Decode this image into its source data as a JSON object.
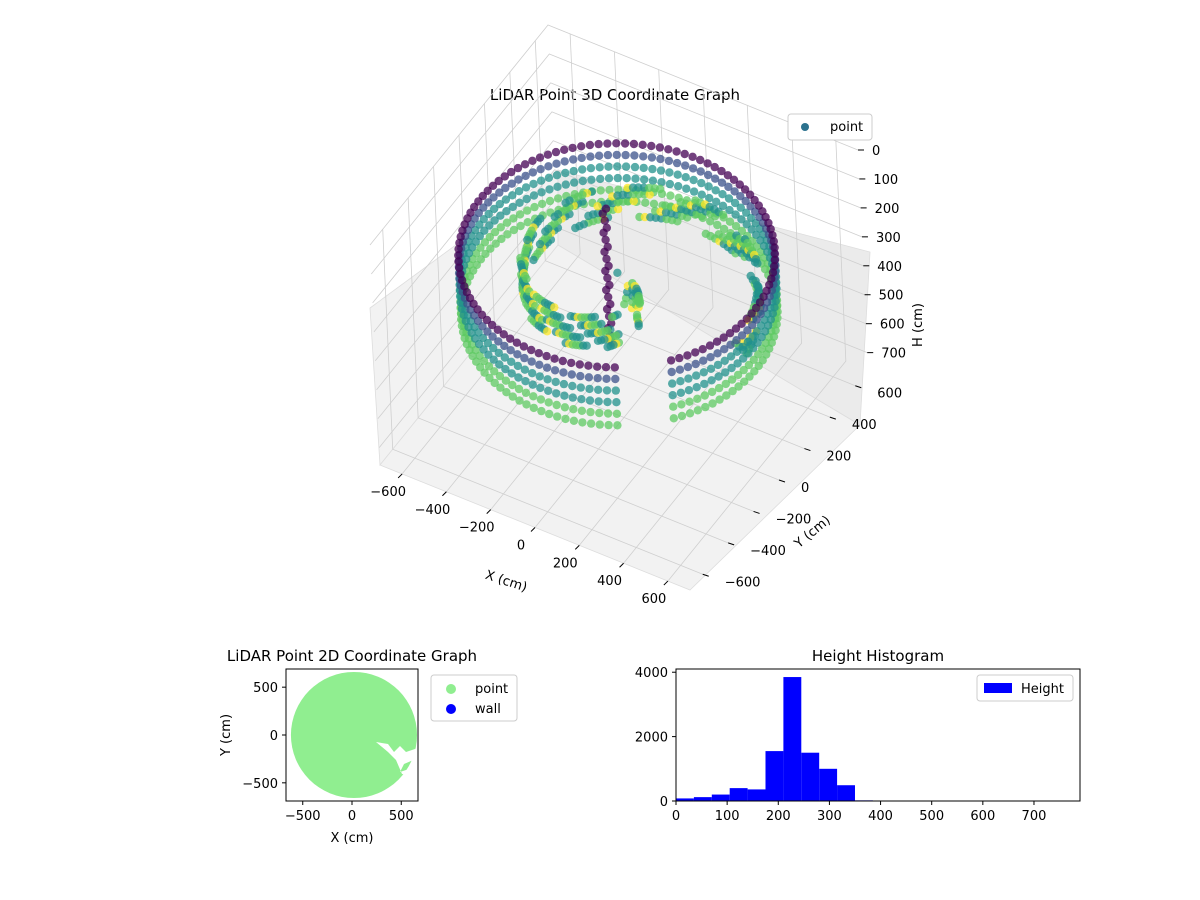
{
  "figure": {
    "chart_data": [
      {
        "type": "scatter3d",
        "title": "LiDAR Point 3D Coordinate Graph",
        "xlabel": "X (cm)",
        "ylabel": "Y (cm)",
        "zlabel": "H (cm)",
        "xlim": [
          -700,
          700
        ],
        "ylim": [
          -700,
          700
        ],
        "zlim": [
          0,
          760
        ],
        "z_inverted": true,
        "xticks": [
          -600,
          -400,
          -200,
          0,
          200,
          400,
          600
        ],
        "yticks": [
          -600,
          -400,
          -200,
          0,
          200,
          400,
          600
        ],
        "zticks": [
          0,
          100,
          200,
          300,
          400,
          500,
          600,
          700
        ],
        "legend": [
          {
            "label": "point",
            "color": "#2c728e"
          }
        ],
        "legend_position": "upper-right",
        "colormap": "viridis",
        "grid": true,
        "series": [
          {
            "name": "point",
            "description_points": {
              "ring_radius_cm": 620,
              "ring_height_range_cm": [
                200,
                420
              ],
              "central_column": {
                "x": -80,
                "y": 40,
                "h_range": [
                  80,
                  560
                ]
              }
            }
          }
        ]
      },
      {
        "type": "scatter",
        "title": "LiDAR Point 2D Coordinate Graph",
        "xlabel": "X (cm)",
        "ylabel": "Y (cm)",
        "xlim": [
          -670,
          670
        ],
        "ylim": [
          -690,
          690
        ],
        "xticks": [
          -500,
          0,
          500
        ],
        "yticks": [
          -500,
          0,
          500
        ],
        "legend": [
          {
            "label": "point",
            "color": "#90ee90"
          },
          {
            "label": "wall",
            "color": "#0000ff"
          }
        ],
        "legend_position": "outside-right",
        "series": [
          {
            "name": "point",
            "shape": "disc",
            "center": [
              20,
              0
            ],
            "radius": 640,
            "color": "#90ee90"
          },
          {
            "name": "wall",
            "color": "#0000ff",
            "values": []
          }
        ]
      },
      {
        "type": "bar",
        "title": "Height Histogram",
        "xlabel": "",
        "ylabel": "",
        "xlim": [
          0,
          790
        ],
        "ylim": [
          0,
          4100
        ],
        "xticks": [
          0,
          100,
          200,
          300,
          400,
          500,
          600,
          700
        ],
        "yticks": [
          0,
          2000,
          4000
        ],
        "legend": [
          {
            "label": "Height",
            "color": "#0000ff"
          }
        ],
        "legend_position": "top-right",
        "bin_width": 35,
        "bins": [
          {
            "x0": 0,
            "count": 80
          },
          {
            "x0": 35,
            "count": 120
          },
          {
            "x0": 70,
            "count": 200
          },
          {
            "x0": 105,
            "count": 400
          },
          {
            "x0": 140,
            "count": 360
          },
          {
            "x0": 175,
            "count": 1550
          },
          {
            "x0": 210,
            "count": 3850
          },
          {
            "x0": 245,
            "count": 1500
          },
          {
            "x0": 280,
            "count": 1000
          },
          {
            "x0": 315,
            "count": 490
          },
          {
            "x0": 350,
            "count": 20
          },
          {
            "x0": 385,
            "count": 10
          },
          {
            "x0": 420,
            "count": 10
          },
          {
            "x0": 455,
            "count": 5
          },
          {
            "x0": 490,
            "count": 5
          },
          {
            "x0": 525,
            "count": 5
          },
          {
            "x0": 560,
            "count": 5
          },
          {
            "x0": 595,
            "count": 5
          },
          {
            "x0": 630,
            "count": 5
          },
          {
            "x0": 665,
            "count": 5
          },
          {
            "x0": 700,
            "count": 5
          },
          {
            "x0": 735,
            "count": 5
          }
        ]
      }
    ]
  }
}
